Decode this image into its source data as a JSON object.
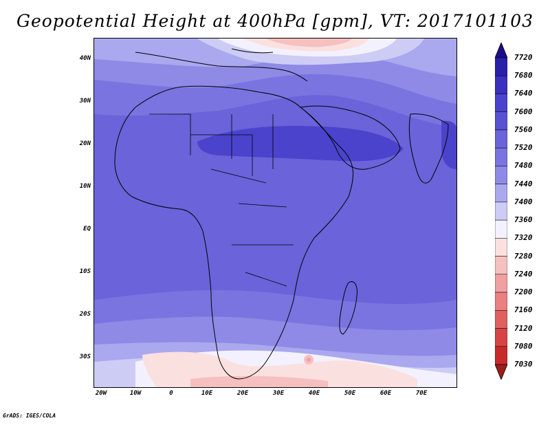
{
  "title": "Geopotential Height at 400hPa [gpm], VT: 2017101103",
  "map": {
    "lat_labels": [
      "40N",
      "30N",
      "20N",
      "10N",
      "EQ",
      "10S",
      "20S",
      "30S"
    ],
    "lon_labels": [
      "20W",
      "10W",
      "0",
      "10E",
      "20E",
      "30E",
      "40E",
      "50E",
      "60E",
      "70E"
    ]
  },
  "colorbar": {
    "levels": [
      "7720",
      "7680",
      "7640",
      "7600",
      "7560",
      "7520",
      "7480",
      "7440",
      "7400",
      "7360",
      "7320",
      "7280",
      "7240",
      "7200",
      "7160",
      "7120",
      "7080",
      "7030"
    ],
    "colors": [
      "#1b0d8a",
      "#2a1fa8",
      "#3a30bf",
      "#4b43cc",
      "#5a52d4",
      "#6a63d9",
      "#7a74e0",
      "#8e8ae6",
      "#aaa8ee",
      "#ccccf5",
      "#f4f1ff",
      "#fbe0e0",
      "#f6c0c0",
      "#f0a0a0",
      "#ea8080",
      "#e06060",
      "#d84444",
      "#c82a2a",
      "#9c1c1c"
    ]
  },
  "credit": "GrADS: IGES/COLA"
}
